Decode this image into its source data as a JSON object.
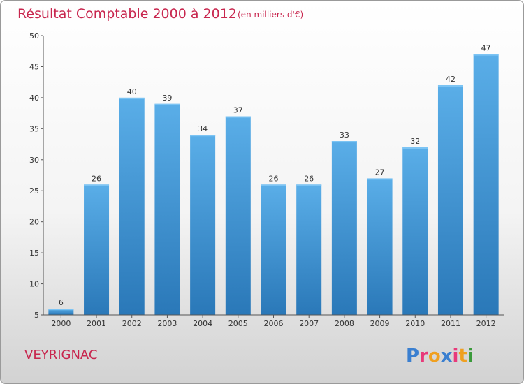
{
  "chart_data": {
    "type": "bar",
    "title": "Résultat Comptable 2000 à 2012",
    "subtitle": "(en milliers d'€)",
    "categories": [
      "2000",
      "2001",
      "2002",
      "2003",
      "2004",
      "2005",
      "2006",
      "2007",
      "2008",
      "2009",
      "2010",
      "2011",
      "2012"
    ],
    "values": [
      6,
      26,
      40,
      39,
      34,
      37,
      26,
      26,
      33,
      27,
      32,
      42,
      47
    ],
    "ylim": [
      5,
      50
    ],
    "yticks": [
      5,
      10,
      15,
      20,
      25,
      30,
      35,
      40,
      45,
      50
    ],
    "xlabel": "",
    "ylabel": "",
    "grid": false,
    "bar_color_top": "#5aaee8",
    "bar_color_bottom": "#2a78b8"
  },
  "footer": {
    "city": "VEYRIGNAC",
    "logo_letters": [
      "P",
      "r",
      "o",
      "x",
      "i",
      "t",
      "i"
    ],
    "logo_colors": [
      "#3a7fd0",
      "#e83a7a",
      "#f0a020",
      "#3a7fd0",
      "#e83a7a",
      "#f0a020",
      "#3a9a3a"
    ]
  },
  "colors": {
    "title": "#c8264e",
    "axis": "#555555"
  }
}
